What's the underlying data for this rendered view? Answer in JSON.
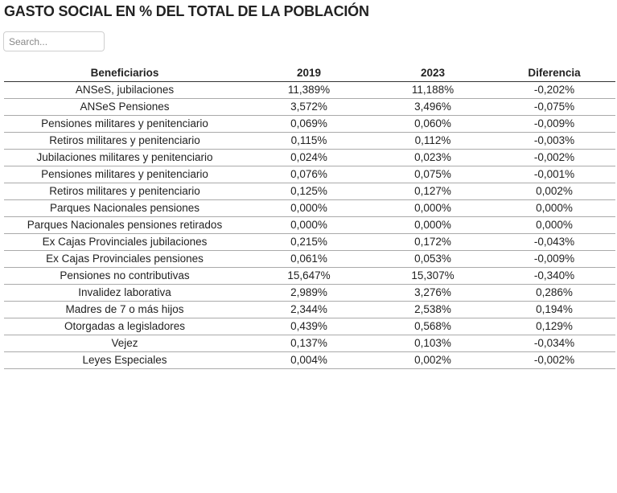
{
  "page": {
    "title": "GASTO SOCIAL EN % DEL TOTAL DE LA POBLACIÓN"
  },
  "search": {
    "placeholder": "Search...",
    "value": ""
  },
  "table": {
    "columns": [
      "Beneficiarios",
      "2019",
      "2023",
      "Diferencia"
    ],
    "rows": [
      {
        "name": "ANSeS, jubilaciones",
        "y2019": "11,389%",
        "y2023": "11,188%",
        "diff": "-0,202%"
      },
      {
        "name": "ANSeS Pensiones",
        "y2019": "3,572%",
        "y2023": "3,496%",
        "diff": "-0,075%"
      },
      {
        "name": "Pensiones militares y penitenciario",
        "y2019": "0,069%",
        "y2023": "0,060%",
        "diff": "-0,009%"
      },
      {
        "name": "Retiros militares y penitenciario",
        "y2019": "0,115%",
        "y2023": "0,112%",
        "diff": "-0,003%"
      },
      {
        "name": "Jubilaciones militares y penitenciario",
        "y2019": "0,024%",
        "y2023": "0,023%",
        "diff": "-0,002%"
      },
      {
        "name": "Pensiones militares y penitenciario",
        "y2019": "0,076%",
        "y2023": "0,075%",
        "diff": "-0,001%"
      },
      {
        "name": "Retiros militares y penitenciario",
        "y2019": "0,125%",
        "y2023": "0,127%",
        "diff": "0,002%"
      },
      {
        "name": "Parques Nacionales pensiones",
        "y2019": "0,000%",
        "y2023": "0,000%",
        "diff": "0,000%"
      },
      {
        "name": "Parques Nacionales pensiones retirados",
        "y2019": "0,000%",
        "y2023": "0,000%",
        "diff": "0,000%"
      },
      {
        "name": "Ex Cajas Provinciales jubilaciones",
        "y2019": "0,215%",
        "y2023": "0,172%",
        "diff": "-0,043%"
      },
      {
        "name": "Ex Cajas Provinciales pensiones",
        "y2019": "0,061%",
        "y2023": "0,053%",
        "diff": "-0,009%"
      },
      {
        "name": "Pensiones no contributivas",
        "y2019": "15,647%",
        "y2023": "15,307%",
        "diff": "-0,340%"
      },
      {
        "name": "Invalidez laborativa",
        "y2019": "2,989%",
        "y2023": "3,276%",
        "diff": "0,286%"
      },
      {
        "name": "Madres de 7 o más hijos",
        "y2019": "2,344%",
        "y2023": "2,538%",
        "diff": "0,194%"
      },
      {
        "name": "Otorgadas a legisladores",
        "y2019": "0,439%",
        "y2023": "0,568%",
        "diff": "0,129%"
      },
      {
        "name": "Vejez",
        "y2019": "0,137%",
        "y2023": "0,103%",
        "diff": "-0,034%"
      },
      {
        "name": "Leyes Especiales",
        "y2019": "0,004%",
        "y2023": "0,002%",
        "diff": "-0,002%"
      }
    ]
  }
}
